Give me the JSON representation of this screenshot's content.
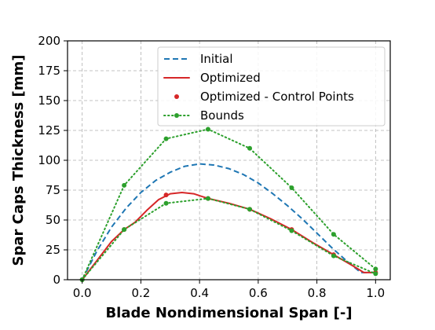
{
  "chart_data": {
    "type": "line",
    "xlabel": "Blade Nondimensional Span [-]",
    "ylabel": "Spar Caps Thickness [mm]",
    "xlim": [
      -0.05,
      1.05
    ],
    "ylim": [
      0,
      200
    ],
    "x_ticks": [
      0.0,
      0.2,
      0.4,
      0.6,
      0.8,
      1.0
    ],
    "x_tick_labels": [
      "0.0",
      "0.2",
      "0.4",
      "0.6",
      "0.8",
      "1.0"
    ],
    "y_ticks": [
      0,
      25,
      50,
      75,
      100,
      125,
      150,
      175,
      200
    ],
    "y_tick_labels": [
      "0",
      "25",
      "50",
      "75",
      "100",
      "125",
      "150",
      "175",
      "200"
    ],
    "grid": true,
    "legend_position": "top-right",
    "series": [
      {
        "name": "Initial",
        "style": "dashed",
        "color": "#1f77b4",
        "x": [
          0.0,
          0.05,
          0.1,
          0.15,
          0.2,
          0.25,
          0.3,
          0.35,
          0.4,
          0.45,
          0.5,
          0.55,
          0.6,
          0.65,
          0.7,
          0.75,
          0.8,
          0.85,
          0.9,
          0.95,
          1.0
        ],
        "y": [
          0,
          24,
          44,
          60,
          73,
          83,
          90,
          95,
          97,
          96,
          93,
          88,
          81,
          72,
          62,
          51,
          39,
          27,
          16,
          6,
          6
        ]
      },
      {
        "name": "Optimized",
        "style": "solid",
        "color": "#d62728",
        "x": [
          0.0,
          0.05,
          0.1,
          0.143,
          0.18,
          0.22,
          0.26,
          0.3,
          0.34,
          0.38,
          0.429,
          0.5,
          0.571,
          0.643,
          0.714,
          0.786,
          0.857,
          0.92,
          0.96,
          1.0
        ],
        "y": [
          0,
          16,
          32,
          42,
          48,
          58,
          67,
          72,
          73,
          72,
          68,
          64,
          59,
          51,
          42,
          31,
          21,
          12,
          6,
          6
        ]
      },
      {
        "name": "Optimized - Control Points",
        "style": "markers",
        "color": "#d62728",
        "x": [
          0.0,
          0.143,
          0.286,
          0.429,
          0.571,
          0.714,
          0.857,
          1.0
        ],
        "y": [
          0,
          42,
          71,
          68,
          59,
          42,
          21,
          6
        ]
      },
      {
        "name": "Bounds",
        "style": "dotted-markers",
        "color": "#2ca02c",
        "x": [
          0.0,
          0.143,
          0.286,
          0.429,
          0.571,
          0.714,
          0.857,
          1.0
        ],
        "y": [
          0,
          79,
          118,
          126,
          110,
          77,
          38,
          9
        ]
      },
      {
        "name": "",
        "style": "dotted-markers",
        "color": "#2ca02c",
        "x": [
          0.0,
          0.143,
          0.286,
          0.429,
          0.571,
          0.714,
          0.857,
          1.0
        ],
        "y": [
          0,
          42,
          64,
          68,
          59,
          41,
          20,
          5
        ]
      }
    ],
    "legend": [
      "Initial",
      "Optimized",
      "Optimized - Control Points",
      "Bounds"
    ]
  }
}
